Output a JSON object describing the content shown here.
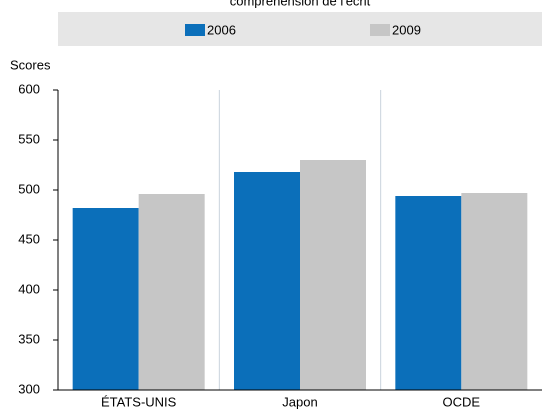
{
  "chart_data": {
    "type": "bar",
    "title": "compréhension de l'écrit",
    "ylabel": "Scores",
    "categories": [
      "ÉTATS-UNIS",
      "Japon",
      "OCDE"
    ],
    "series": [
      {
        "name": "2006",
        "color": "#0b6fba",
        "values": [
          482,
          518,
          494
        ]
      },
      {
        "name": "2009",
        "color": "#c6c6c6",
        "values": [
          496,
          530,
          497
        ]
      }
    ],
    "ylim": [
      300,
      600
    ],
    "yticks": [
      300,
      350,
      400,
      450,
      500,
      550,
      600
    ],
    "legend": "top"
  }
}
